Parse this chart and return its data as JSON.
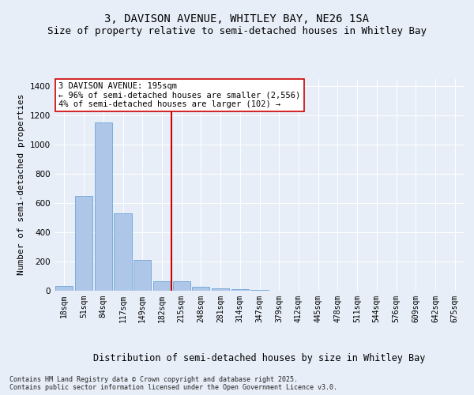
{
  "title1": "3, DAVISON AVENUE, WHITLEY BAY, NE26 1SA",
  "title2": "Size of property relative to semi-detached houses in Whitley Bay",
  "xlabel": "Distribution of semi-detached houses by size in Whitley Bay",
  "ylabel": "Number of semi-detached properties",
  "categories": [
    "18sqm",
    "51sqm",
    "84sqm",
    "117sqm",
    "149sqm",
    "182sqm",
    "215sqm",
    "248sqm",
    "281sqm",
    "314sqm",
    "347sqm",
    "379sqm",
    "412sqm",
    "445sqm",
    "478sqm",
    "511sqm",
    "544sqm",
    "576sqm",
    "609sqm",
    "642sqm",
    "675sqm"
  ],
  "values": [
    30,
    650,
    1150,
    530,
    210,
    65,
    60,
    25,
    13,
    7,
    3,
    0,
    0,
    0,
    0,
    0,
    0,
    0,
    0,
    0,
    0
  ],
  "bar_color": "#aec6e8",
  "bar_edge_color": "#5b9bd5",
  "vline_x": 5.5,
  "vline_color": "#cc0000",
  "annotation_text": "3 DAVISON AVENUE: 195sqm\n← 96% of semi-detached houses are smaller (2,556)\n4% of semi-detached houses are larger (102) →",
  "annotation_box_color": "#ffffff",
  "annotation_box_edge": "#cc0000",
  "ylim": [
    0,
    1450
  ],
  "yticks": [
    0,
    200,
    400,
    600,
    800,
    1000,
    1200,
    1400
  ],
  "background_color": "#e8eef8",
  "footer": "Contains HM Land Registry data © Crown copyright and database right 2025.\nContains public sector information licensed under the Open Government Licence v3.0.",
  "title_fontsize": 10,
  "subtitle_fontsize": 9,
  "xlabel_fontsize": 8.5,
  "ylabel_fontsize": 8,
  "tick_fontsize": 7,
  "footer_fontsize": 6
}
